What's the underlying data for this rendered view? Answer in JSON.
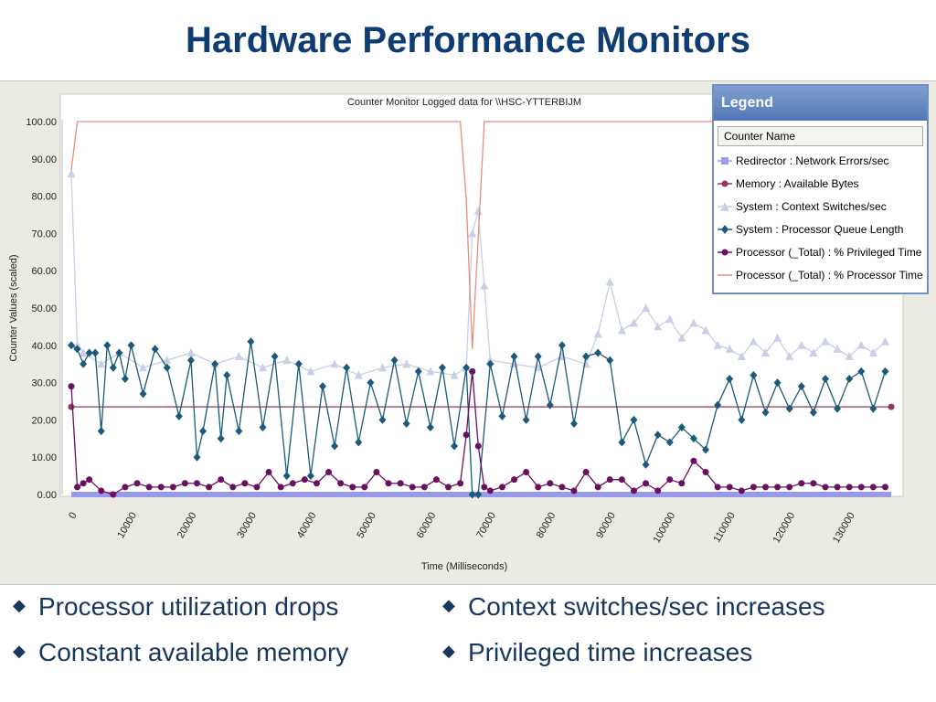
{
  "slide": {
    "title": "Hardware Performance Monitors",
    "bullets": [
      "Processor utilization drops",
      "Context switches/sec increases",
      "Constant available memory",
      "Privileged time increases"
    ],
    "bullet_marker": "◆",
    "bullet_color": "#17375e",
    "title_color": "#0f3d73"
  },
  "legend": {
    "header": "Legend",
    "column_header": "Counter Name",
    "items": [
      {
        "label": "Redirector : Network Errors/sec",
        "color": "#9a9be8",
        "marker": "square"
      },
      {
        "label": "Memory : Available Bytes",
        "color": "#8e3a5a",
        "marker": "circle"
      },
      {
        "label": "System : Context Switches/sec",
        "color": "#c8cfe6",
        "marker": "triangle"
      },
      {
        "label": "System : Processor Queue Length",
        "color": "#1b5a78",
        "marker": "diamond"
      },
      {
        "label": "Processor (_Total) : % Privileged Time",
        "color": "#6b1060",
        "marker": "circle"
      },
      {
        "label": "Processor (_Total) : % Processor Time",
        "color": "#e58e7e",
        "marker": "line"
      }
    ]
  },
  "chart_data": {
    "type": "line",
    "title": "Counter Monitor Logged data for \\\\HSC-YTTERBIJM",
    "xlabel": "Time (Milliseconds)",
    "ylabel": "Counter Values (scaled)",
    "xlim": [
      0,
      137000
    ],
    "ylim": [
      0,
      100
    ],
    "x_ticks": [
      0,
      10000,
      20000,
      30000,
      40000,
      50000,
      60000,
      70000,
      80000,
      90000,
      100000,
      110000,
      120000,
      130000
    ],
    "x_tick_labels": [
      "0",
      "10000",
      "20000",
      "30000",
      "40000",
      "50000",
      "60000",
      "70000",
      "80000",
      "90000",
      "100000",
      "110000",
      "120000",
      "130000"
    ],
    "y_ticks": [
      0,
      10,
      20,
      30,
      40,
      50,
      60,
      70,
      80,
      90,
      100
    ],
    "y_tick_labels": [
      "0.00",
      "10.00",
      "20.00",
      "30.00",
      "40.00",
      "50.00",
      "60.00",
      "70.00",
      "80.00",
      "90.00",
      "100.00"
    ],
    "grid": false,
    "legend_position": "top-right",
    "series": [
      {
        "name": "Redirector : Network Errors/sec",
        "color": "#9a9be8",
        "marker": "square",
        "x": [
          0,
          137000
        ],
        "values": [
          0,
          0
        ]
      },
      {
        "name": "Memory : Available Bytes",
        "color": "#8e3a5a",
        "marker": "circle",
        "x": [
          0,
          137000
        ],
        "values": [
          23.5,
          23.5
        ]
      },
      {
        "name": "System : Context Switches/sec",
        "color": "#c8cfe6",
        "marker": "triangle",
        "x": [
          0,
          1000,
          2000,
          5000,
          8000,
          12000,
          16000,
          20000,
          24000,
          28000,
          32000,
          36000,
          40000,
          44000,
          48000,
          52000,
          56000,
          60000,
          64000,
          66000,
          67000,
          68000,
          69000,
          70000,
          74000,
          78000,
          82000,
          86000,
          88000,
          90000,
          92000,
          94000,
          96000,
          98000,
          100000,
          102000,
          104000,
          106000,
          108000,
          110000,
          112000,
          114000,
          116000,
          118000,
          120000,
          122000,
          124000,
          126000,
          128000,
          130000,
          132000,
          134000,
          136000
        ],
        "values": [
          86,
          40,
          38,
          35,
          38,
          34,
          36,
          38,
          35,
          37,
          34,
          36,
          33,
          35,
          32,
          34,
          35,
          33,
          32,
          34,
          70,
          76,
          56,
          36,
          35,
          34,
          37,
          35,
          43,
          57,
          44,
          46,
          50,
          45,
          47,
          42,
          46,
          44,
          40,
          39,
          37,
          41,
          38,
          42,
          37,
          40,
          38,
          41,
          39,
          37,
          40,
          38,
          41
        ]
      },
      {
        "name": "System : Processor Queue Length",
        "color": "#1b5a78",
        "marker": "diamond",
        "x": [
          0,
          1000,
          2000,
          3000,
          4000,
          5000,
          6000,
          7000,
          8000,
          9000,
          10000,
          12000,
          14000,
          16000,
          18000,
          20000,
          21000,
          22000,
          24000,
          25000,
          26000,
          28000,
          30000,
          32000,
          34000,
          36000,
          38000,
          40000,
          42000,
          44000,
          46000,
          48000,
          50000,
          52000,
          54000,
          56000,
          58000,
          60000,
          62000,
          64000,
          66000,
          67000,
          68000,
          70000,
          72000,
          74000,
          76000,
          78000,
          80000,
          82000,
          84000,
          86000,
          88000,
          90000,
          92000,
          94000,
          96000,
          98000,
          100000,
          102000,
          104000,
          106000,
          108000,
          110000,
          112000,
          114000,
          116000,
          118000,
          120000,
          122000,
          124000,
          126000,
          128000,
          130000,
          132000,
          134000,
          136000
        ],
        "values": [
          40,
          39,
          35,
          38,
          38,
          17,
          40,
          34,
          38,
          31,
          40,
          27,
          39,
          34,
          21,
          36,
          10,
          17,
          35,
          15,
          32,
          17,
          41,
          18,
          37,
          5,
          35,
          5,
          29,
          13,
          34,
          14,
          30,
          20,
          36,
          19,
          33,
          18,
          34,
          13,
          34,
          0,
          0,
          35,
          21,
          37,
          20,
          37,
          24,
          40,
          19,
          37,
          38,
          36,
          14,
          20,
          8,
          16,
          14,
          18,
          15,
          12,
          24,
          31,
          20,
          32,
          22,
          30,
          23,
          29,
          22,
          31,
          23,
          31,
          33,
          23,
          33
        ]
      },
      {
        "name": "Processor (_Total) : % Privileged Time",
        "color": "#6b1060",
        "marker": "circle",
        "x": [
          0,
          1000,
          2000,
          3000,
          5000,
          7000,
          9000,
          11000,
          13000,
          15000,
          17000,
          19000,
          21000,
          23000,
          25000,
          27000,
          29000,
          31000,
          33000,
          35000,
          37000,
          39000,
          41000,
          43000,
          45000,
          47000,
          49000,
          51000,
          53000,
          55000,
          57000,
          59000,
          61000,
          63000,
          65000,
          66000,
          67000,
          68000,
          69000,
          70000,
          72000,
          74000,
          76000,
          78000,
          80000,
          82000,
          84000,
          86000,
          88000,
          90000,
          92000,
          94000,
          96000,
          98000,
          100000,
          102000,
          104000,
          106000,
          108000,
          110000,
          112000,
          114000,
          116000,
          118000,
          120000,
          122000,
          124000,
          126000,
          128000,
          130000,
          132000,
          134000,
          136000
        ],
        "values": [
          29,
          2,
          3,
          4,
          1,
          0,
          2,
          3,
          2,
          2,
          2,
          3,
          3,
          2,
          4,
          2,
          3,
          2,
          6,
          2,
          3,
          4,
          3,
          6,
          3,
          2,
          2,
          6,
          3,
          3,
          2,
          2,
          4,
          2,
          3,
          16,
          33,
          13,
          2,
          1,
          2,
          4,
          6,
          2,
          3,
          2,
          1,
          6,
          2,
          4,
          4,
          1,
          3,
          1,
          4,
          3,
          9,
          6,
          2,
          2,
          1,
          2,
          2,
          2,
          2,
          3,
          3,
          2,
          2,
          2,
          2,
          2,
          2
        ]
      },
      {
        "name": "Processor (_Total) : % Processor Time",
        "color": "#e58e7e",
        "marker": "line",
        "x": [
          0,
          1000,
          2000,
          65000,
          66000,
          67000,
          68000,
          69000,
          70000,
          71000,
          137000
        ],
        "values": [
          87,
          100,
          100,
          100,
          79,
          39,
          69,
          100,
          100,
          100,
          100
        ]
      }
    ]
  }
}
